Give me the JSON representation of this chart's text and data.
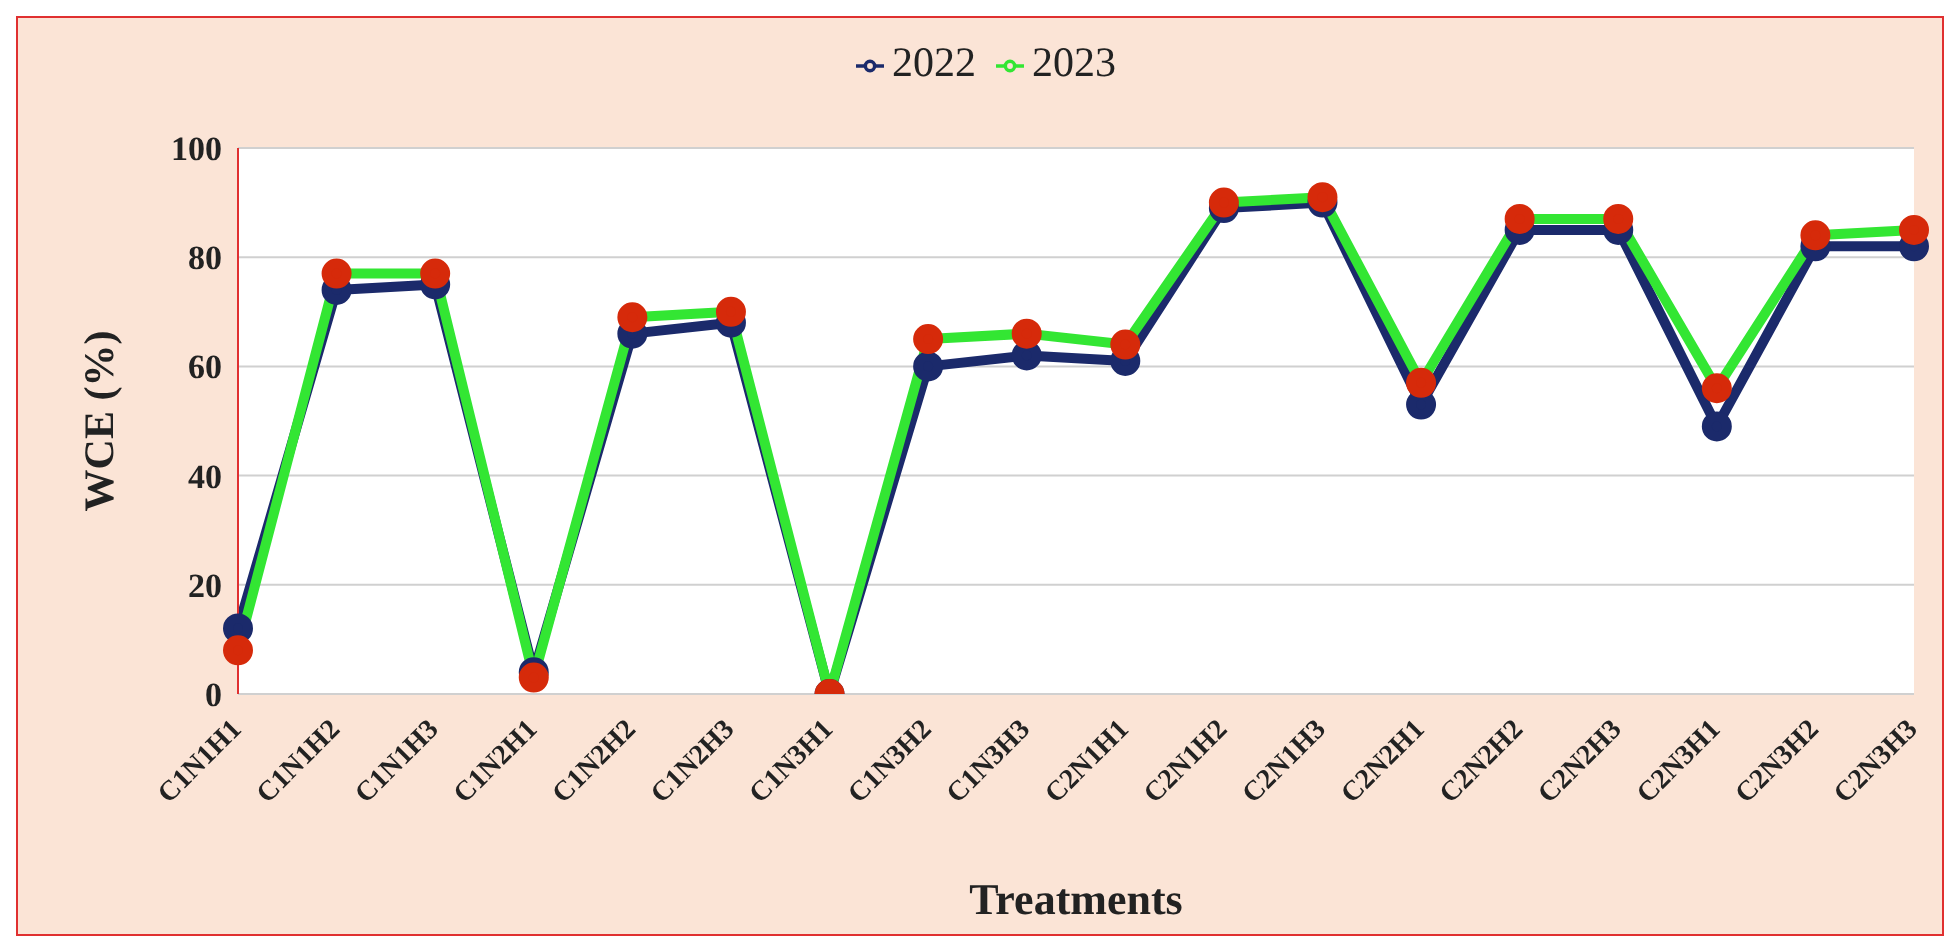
{
  "chart_data": {
    "type": "line",
    "xlabel": "Treatments",
    "ylabel": "WCE (%)",
    "categories": [
      "C1N1H1",
      "C1N1H2",
      "C1N1H3",
      "C1N2H1",
      "C1N2H2",
      "C1N2H3",
      "C1N3H1",
      "C1N3H2",
      "C1N3H3",
      "C2N1H1",
      "C2N1H2",
      "C2N1H3",
      "C2N2H1",
      "C2N2H2",
      "C2N2H3",
      "C2N3H1",
      "C2N3H2",
      "C2N3H3"
    ],
    "series": [
      {
        "name": "2022",
        "color": "#1b2a6b",
        "values": [
          12,
          74,
          75,
          4,
          66,
          68,
          0,
          60,
          62,
          61,
          89,
          90,
          53,
          85,
          85,
          49,
          82,
          82
        ]
      },
      {
        "name": "2023",
        "color": "#33e633",
        "values": [
          8,
          77,
          77,
          3,
          69,
          70,
          0,
          65,
          66,
          64,
          90,
          91,
          57,
          87,
          87,
          56,
          84,
          85
        ]
      }
    ],
    "ylim": [
      0,
      100
    ],
    "yticks": [
      0,
      20,
      40,
      60,
      80,
      100
    ],
    "grid": "y",
    "legend": "top",
    "marker": "circle",
    "line_style": "solid"
  }
}
